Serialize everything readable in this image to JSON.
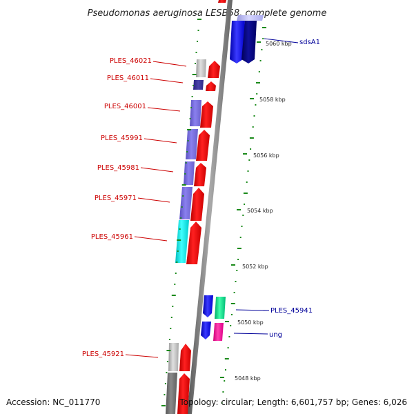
{
  "title": "Pseudomonas aeruginosa LESB58, complete genome",
  "footer": {
    "accession": "Accession: NC_011770",
    "summary": "Topology: circular; Length: 6,601,757 bp; Genes: 6,026"
  },
  "colors": {
    "backbone": "#808080",
    "tick": "#1a8a1a",
    "label_reverse": "#cc0000",
    "label_forward": "#000099"
  },
  "ticks": [
    {
      "label": "5060 kbp"
    },
    {
      "label": "5058 kbp"
    },
    {
      "label": "5056 kbp"
    },
    {
      "label": "5054 kbp"
    },
    {
      "label": "5052 kbp"
    },
    {
      "label": "5050 kbp"
    },
    {
      "label": "5048 kbp"
    }
  ],
  "gene_labels_left": [
    "PLES_46021",
    "PLES_46011",
    "PLES_46001",
    "PLES_45991",
    "PLES_45981",
    "PLES_45971",
    "PLES_45961",
    "PLES_45921"
  ],
  "gene_labels_right": [
    "sdsA1",
    "PLES_45941",
    "ung"
  ]
}
